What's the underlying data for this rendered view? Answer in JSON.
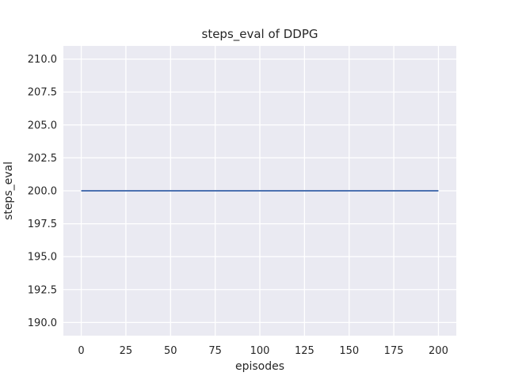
{
  "figure": {
    "background_color": "#ffffff"
  },
  "chart_data": {
    "type": "line",
    "title": "steps_eval of DDPG",
    "xlabel": "episodes",
    "ylabel": "steps_eval",
    "xlim": [
      -10,
      210
    ],
    "ylim": [
      189.0,
      211.0
    ],
    "xticks": [
      0,
      25,
      50,
      75,
      100,
      125,
      150,
      175,
      200
    ],
    "xtick_labels": [
      "0",
      "25",
      "50",
      "75",
      "100",
      "125",
      "150",
      "175",
      "200"
    ],
    "yticks": [
      190.0,
      192.5,
      195.0,
      197.5,
      200.0,
      202.5,
      205.0,
      207.5,
      210.0
    ],
    "ytick_labels": [
      "190.0",
      "192.5",
      "195.0",
      "197.5",
      "200.0",
      "202.5",
      "205.0",
      "207.5",
      "210.0"
    ],
    "grid": true,
    "legend": "none",
    "panel_color": "#eaeaf2",
    "grid_color": "#ffffff",
    "text_color": "#262626",
    "series": [
      {
        "name": "DDPG",
        "color": "#4c72b0",
        "constant_value": 200,
        "x": [
          0,
          200
        ],
        "y": [
          200,
          200
        ]
      }
    ]
  }
}
